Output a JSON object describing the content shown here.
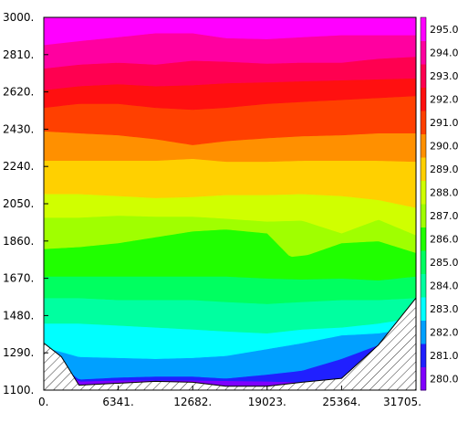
{
  "chart_data": {
    "type": "heatmap",
    "subtype": "filled-contour",
    "title": "",
    "xlabel": "",
    "ylabel": "",
    "xlim": [
      0,
      31705
    ],
    "ylim": [
      1100,
      3000
    ],
    "x_ticks": [
      "0.",
      "6341.",
      "12682.",
      "19023.",
      "25364.",
      "31705."
    ],
    "x_tick_values": [
      0,
      6341,
      12682,
      19023,
      25364,
      31705
    ],
    "y_ticks": [
      "1100.",
      "1290.",
      "1480.",
      "1670.",
      "1860.",
      "2050.",
      "2240.",
      "2430.",
      "2620.",
      "2810.",
      "3000."
    ],
    "y_tick_values": [
      1100,
      1290,
      1480,
      1670,
      1860,
      2050,
      2240,
      2430,
      2620,
      2810,
      3000
    ],
    "colorbar": {
      "levels": [
        "280.0",
        "281.0",
        "282.0",
        "283.0",
        "284.0",
        "285.0",
        "286.0",
        "287.0",
        "288.0",
        "289.0",
        "290.0",
        "291.0",
        "292.0",
        "293.0",
        "294.0",
        "295.0"
      ],
      "colors": [
        "#8000ff",
        "#2020ff",
        "#00a0ff",
        "#00ffff",
        "#00ffa0",
        "#00ff60",
        "#20ff00",
        "#a0ff00",
        "#d0ff00",
        "#ffd000",
        "#ff9000",
        "#ff4000",
        "#ff1010",
        "#ff0050",
        "#ff00a0",
        "#ff00ff"
      ]
    },
    "contour_boundaries": [
      {
        "level": 280.5,
        "x": [
          0,
          3000,
          6341,
          12682,
          19023,
          25364,
          31705
        ],
        "y": [
          1290,
          1145,
          1150,
          1150,
          1145,
          1135,
          1130
        ]
      },
      {
        "level": 281.5,
        "x": [
          0,
          3000,
          6341,
          9500,
          12682,
          15500,
          19023,
          22000,
          25364,
          28500,
          31705
        ],
        "y": [
          1300,
          1155,
          1165,
          1170,
          1170,
          1160,
          1180,
          1200,
          1260,
          1330,
          1400
        ]
      },
      {
        "level": 282.5,
        "x": [
          0,
          3000,
          6341,
          9500,
          12682,
          15500,
          19023,
          22000,
          25364,
          28500,
          31705
        ],
        "y": [
          1320,
          1270,
          1265,
          1260,
          1265,
          1275,
          1310,
          1340,
          1380,
          1390,
          1420
        ]
      },
      {
        "level": 283.5,
        "x": [
          0,
          3000,
          6341,
          9500,
          12682,
          15500,
          19023,
          22000,
          25364,
          28500,
          31705
        ],
        "y": [
          1440,
          1440,
          1430,
          1420,
          1410,
          1400,
          1390,
          1410,
          1420,
          1440,
          1470
        ]
      },
      {
        "level": 284.5,
        "x": [
          0,
          3000,
          6341,
          9500,
          12682,
          15500,
          19023,
          22000,
          25364,
          28500,
          31705
        ],
        "y": [
          1570,
          1570,
          1560,
          1560,
          1560,
          1550,
          1540,
          1550,
          1560,
          1560,
          1570
        ]
      },
      {
        "level": 285.5,
        "x": [
          0,
          3000,
          6341,
          9500,
          12682,
          15500,
          19023,
          22000,
          25364,
          28500,
          31705
        ],
        "y": [
          1680,
          1680,
          1680,
          1680,
          1680,
          1680,
          1670,
          1665,
          1670,
          1660,
          1680
        ]
      },
      {
        "level": 286.5,
        "x": [
          0,
          3000,
          6341,
          9500,
          12682,
          15500,
          19023,
          21000,
          22500,
          25364,
          28500,
          31705
        ],
        "y": [
          1820,
          1830,
          1850,
          1880,
          1910,
          1920,
          1900,
          1780,
          1790,
          1850,
          1860,
          1800
        ]
      },
      {
        "level": 287.5,
        "x": [
          0,
          3000,
          6341,
          9500,
          12682,
          15500,
          19023,
          22000,
          25364,
          28500,
          31705
        ],
        "y": [
          1980,
          1980,
          1990,
          1985,
          1985,
          1975,
          1960,
          1965,
          1900,
          1970,
          1890
        ]
      },
      {
        "level": 288.5,
        "x": [
          0,
          3000,
          6341,
          9500,
          12682,
          15500,
          19023,
          22000,
          25364,
          28500,
          31705
        ],
        "y": [
          2100,
          2100,
          2090,
          2080,
          2085,
          2095,
          2095,
          2100,
          2090,
          2070,
          2030
        ]
      },
      {
        "level": 289.5,
        "x": [
          0,
          3000,
          6341,
          9500,
          12682,
          15500,
          19023,
          22000,
          25364,
          28500,
          31705
        ],
        "y": [
          2270,
          2270,
          2270,
          2270,
          2280,
          2265,
          2265,
          2270,
          2270,
          2270,
          2265
        ]
      },
      {
        "level": 290.5,
        "x": [
          0,
          3000,
          6341,
          9500,
          12682,
          15500,
          19023,
          22000,
          25364,
          28500,
          31705
        ],
        "y": [
          2420,
          2410,
          2400,
          2380,
          2350,
          2370,
          2385,
          2395,
          2400,
          2410,
          2410
        ]
      },
      {
        "level": 291.5,
        "x": [
          0,
          3000,
          6341,
          9500,
          12682,
          15500,
          19023,
          22000,
          25364,
          28500,
          31705
        ],
        "y": [
          2540,
          2560,
          2560,
          2540,
          2530,
          2540,
          2560,
          2570,
          2580,
          2590,
          2600
        ]
      },
      {
        "level": 292.5,
        "x": [
          0,
          3000,
          6341,
          9500,
          12682,
          15500,
          19023,
          22000,
          25364,
          28500,
          31705
        ],
        "y": [
          2630,
          2650,
          2660,
          2650,
          2655,
          2665,
          2670,
          2675,
          2680,
          2685,
          2690
        ]
      },
      {
        "level": 293.5,
        "x": [
          0,
          3000,
          6341,
          9500,
          12682,
          15500,
          19023,
          22000,
          25364,
          28500,
          31705
        ],
        "y": [
          2740,
          2760,
          2770,
          2760,
          2780,
          2775,
          2765,
          2770,
          2770,
          2790,
          2800
        ]
      },
      {
        "level": 294.5,
        "x": [
          0,
          3000,
          6341,
          9500,
          12682,
          15500,
          19023,
          22000,
          25364,
          28500,
          31705
        ],
        "y": [
          2860,
          2880,
          2900,
          2920,
          2920,
          2895,
          2890,
          2900,
          2910,
          2910,
          2910
        ]
      }
    ],
    "terrain": {
      "x": [
        0,
        1500,
        3000,
        6341,
        9500,
        12682,
        15500,
        19023,
        22000,
        25364,
        28500,
        31705
      ],
      "y": [
        1340,
        1270,
        1125,
        1135,
        1145,
        1140,
        1120,
        1120,
        1140,
        1160,
        1330,
        1570
      ],
      "pattern": "hatched"
    }
  }
}
